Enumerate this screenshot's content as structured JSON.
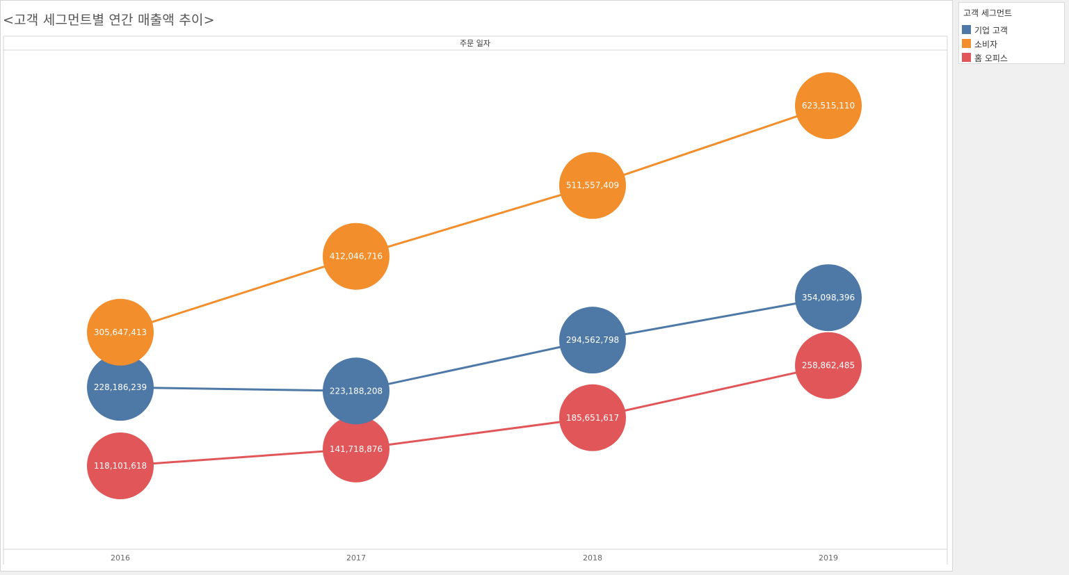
{
  "title": "<고객 세그먼트별 연간 매출액 추이>",
  "legend": {
    "title": "고객 세그먼트",
    "items": [
      {
        "label": "기업 고객",
        "color": "#4e79a7"
      },
      {
        "label": "소비자",
        "color": "#f28e2b"
      },
      {
        "label": "홈 오피스",
        "color": "#e15759"
      }
    ]
  },
  "chart_data": {
    "type": "line",
    "header_label": "주문 일자",
    "categories": [
      "2016",
      "2017",
      "2018",
      "2019"
    ],
    "series": [
      {
        "name": "소비자",
        "color": "#f28e2b",
        "values": [
          305647413,
          412046716,
          511557409,
          623515110
        ],
        "labels": [
          "305,647,413",
          "412,046,716",
          "511,557,409",
          "623,515,110"
        ]
      },
      {
        "name": "기업 고객",
        "color": "#4e79a7",
        "values": [
          228186239,
          223188208,
          294562798,
          354098396
        ],
        "labels": [
          "228,186,239",
          "223,188,208",
          "294,562,798",
          "354,098,396"
        ]
      },
      {
        "name": "홈 오피스",
        "color": "#e15759",
        "values": [
          118101618,
          141718876,
          185651617,
          258862485
        ],
        "labels": [
          "118,101,618",
          "141,718,876",
          "185,651,617",
          "258,862,485"
        ]
      }
    ],
    "legend_position": "top-right",
    "grid": false
  }
}
